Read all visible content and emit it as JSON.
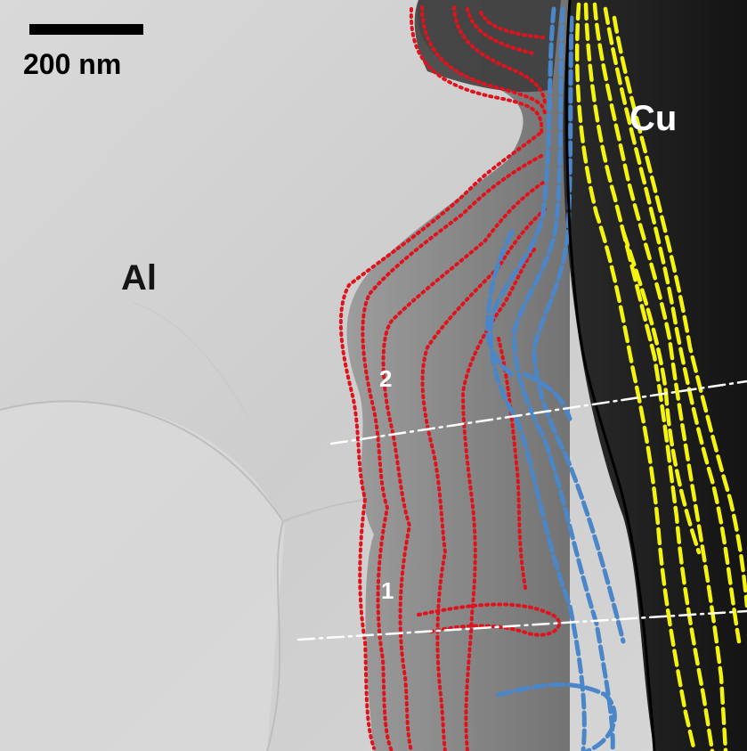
{
  "scale_bar": {
    "label": "200 nm"
  },
  "regions": {
    "left_label": "Al",
    "right_label": "Cu"
  },
  "profile_markers": {
    "marker_1": "1",
    "marker_2": "2"
  },
  "colors": {
    "red_boundaries": "#e0121c",
    "blue_boundaries": "#4a86c8",
    "yellow_boundaries": "#f4f40e",
    "interface_line": "#000000",
    "profile_lines": "#ffffff",
    "scale_bar": "#000000"
  },
  "line_styles": {
    "red": "dotted",
    "blue": "dashed",
    "yellow": "dashed",
    "interface": "solid",
    "profile": "dash-dot"
  }
}
